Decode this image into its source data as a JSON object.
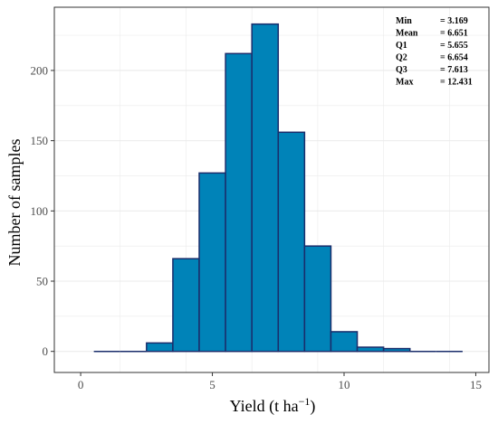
{
  "chart_data": {
    "type": "bar",
    "bin_width": 1,
    "bins": [
      {
        "from": 0.5,
        "to": 1.5,
        "count": 0
      },
      {
        "from": 1.5,
        "to": 2.5,
        "count": 0
      },
      {
        "from": 2.5,
        "to": 3.5,
        "count": 6
      },
      {
        "from": 3.5,
        "to": 4.5,
        "count": 66
      },
      {
        "from": 4.5,
        "to": 5.5,
        "count": 127
      },
      {
        "from": 5.5,
        "to": 6.5,
        "count": 212
      },
      {
        "from": 6.5,
        "to": 7.5,
        "count": 233
      },
      {
        "from": 7.5,
        "to": 8.5,
        "count": 156
      },
      {
        "from": 8.5,
        "to": 9.5,
        "count": 75
      },
      {
        "from": 9.5,
        "to": 10.5,
        "count": 14
      },
      {
        "from": 10.5,
        "to": 11.5,
        "count": 3
      },
      {
        "from": 11.5,
        "to": 12.5,
        "count": 2
      },
      {
        "from": 12.5,
        "to": 13.5,
        "count": 0
      },
      {
        "from": 13.5,
        "to": 14.5,
        "count": 0
      }
    ],
    "xlabel": "Yield (t ha",
    "xlabel_superscript": "−1",
    "xlabel_close": ")",
    "ylabel": "Number of samples",
    "xlim": [
      -1,
      15.5
    ],
    "ylim": [
      -15,
      245
    ],
    "xticks": [
      0,
      5,
      10,
      15
    ],
    "yticks": [
      0,
      50,
      100,
      150,
      200
    ],
    "grid": true,
    "colors": {
      "bar_fill": "#0083b8",
      "bar_stroke": "#1a2d6b",
      "grid": "#ebebeb",
      "panel_border": "#333333"
    },
    "stats": [
      {
        "label": "Min",
        "value": "= 3.169"
      },
      {
        "label": "Mean",
        "value": "= 6.651"
      },
      {
        "label": "Q1",
        "value": "= 5.655"
      },
      {
        "label": "Q2",
        "value": "= 6.654"
      },
      {
        "label": "Q3",
        "value": "= 7.613"
      },
      {
        "label": "Max",
        "value": "= 12.431"
      }
    ]
  }
}
